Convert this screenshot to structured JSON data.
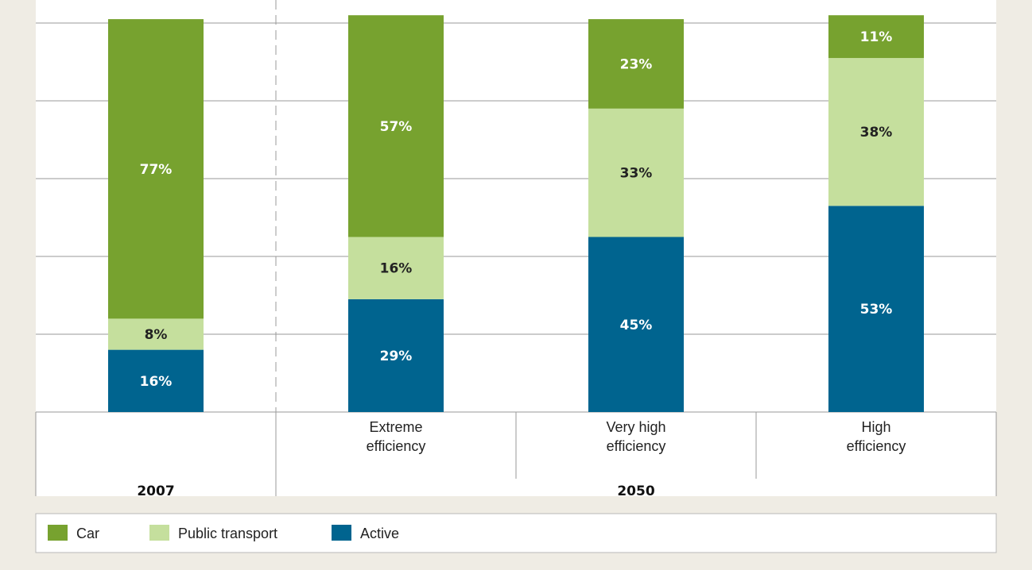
{
  "chart_data": {
    "type": "bar",
    "stacked": true,
    "categories": [
      "",
      "Extreme efficiency",
      "Very high efficiency",
      "High efficiency"
    ],
    "category_lines": [
      [],
      [
        "Extreme",
        "efficiency"
      ],
      [
        "Very high",
        "efficiency"
      ],
      [
        "High",
        "efficiency"
      ]
    ],
    "groups": [
      {
        "label": "2007",
        "categories": [
          0
        ]
      },
      {
        "label": "2050",
        "categories": [
          1,
          2,
          3
        ]
      }
    ],
    "series": [
      {
        "name": "Active",
        "color": "#00648f",
        "label_color": "#ffffff",
        "values": [
          16,
          29,
          45,
          53
        ],
        "labels": [
          "16%",
          "29%",
          "45%",
          "53%"
        ]
      },
      {
        "name": "Public transport",
        "color": "#c5df9d",
        "label_color": "#222222",
        "values": [
          8,
          16,
          33,
          38
        ],
        "labels": [
          "8%",
          "16%",
          "33%",
          "38%"
        ]
      },
      {
        "name": "Car",
        "color": "#77a22f",
        "label_color": "#ffffff",
        "values": [
          77,
          57,
          23,
          11
        ],
        "labels": [
          "77%",
          "57%",
          "23%",
          "11%"
        ]
      }
    ],
    "legend": [
      "Car",
      "Public transport",
      "Active"
    ],
    "legend_position": "bottom",
    "ylim": [
      0,
      100
    ],
    "grid": true,
    "title": "",
    "xlabel": "",
    "ylabel": ""
  }
}
